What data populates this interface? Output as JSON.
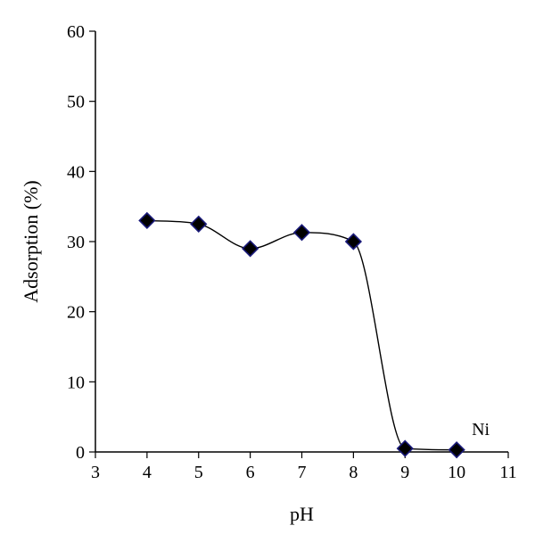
{
  "chart_data": {
    "type": "scatter",
    "xlabel": "pH",
    "ylabel": "Adsorption (%)",
    "xlim": [
      3,
      11
    ],
    "ylim": [
      0,
      60
    ],
    "xticks": [
      3,
      4,
      5,
      6,
      7,
      8,
      9,
      10,
      11
    ],
    "yticks": [
      0,
      10,
      20,
      30,
      40,
      50,
      60
    ],
    "grid": false,
    "smooth_line": true,
    "series": [
      {
        "name": "Ni",
        "x": [
          4,
          5,
          6,
          7,
          8,
          9,
          10
        ],
        "y": [
          33,
          32.5,
          29,
          31.3,
          30,
          0.5,
          0.3
        ],
        "marker": "diamond",
        "marker_color": "#000000",
        "marker_edge_color": "#1a1a7a"
      }
    ],
    "annotations": [
      {
        "text": "Ni",
        "x": 10.5,
        "y": 2.4
      }
    ]
  }
}
